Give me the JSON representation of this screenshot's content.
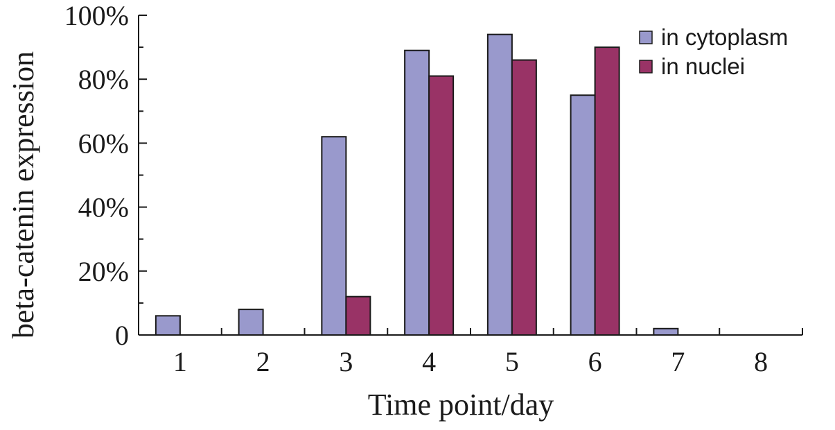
{
  "chart_data": {
    "type": "bar",
    "title": "",
    "xlabel": "Time point/day",
    "ylabel": "beta-catenin expression",
    "categories": [
      "1",
      "2",
      "3",
      "4",
      "5",
      "6",
      "7",
      "8"
    ],
    "yticks": [
      {
        "value": 0,
        "label": "0"
      },
      {
        "value": 20,
        "label": "20%"
      },
      {
        "value": 40,
        "label": "40%"
      },
      {
        "value": 60,
        "label": "60%"
      },
      {
        "value": 80,
        "label": "80%"
      },
      {
        "value": 100,
        "label": "100%"
      }
    ],
    "ylim": [
      0,
      100
    ],
    "grid": false,
    "legend_position": "top-right",
    "series": [
      {
        "name": "in cytoplasm",
        "color": "#9999cc",
        "values": [
          6,
          8,
          62,
          89,
          94,
          75,
          2,
          0
        ]
      },
      {
        "name": "in nuclei",
        "color": "#993366",
        "values": [
          0,
          0,
          12,
          81,
          86,
          90,
          0,
          0
        ]
      }
    ]
  }
}
